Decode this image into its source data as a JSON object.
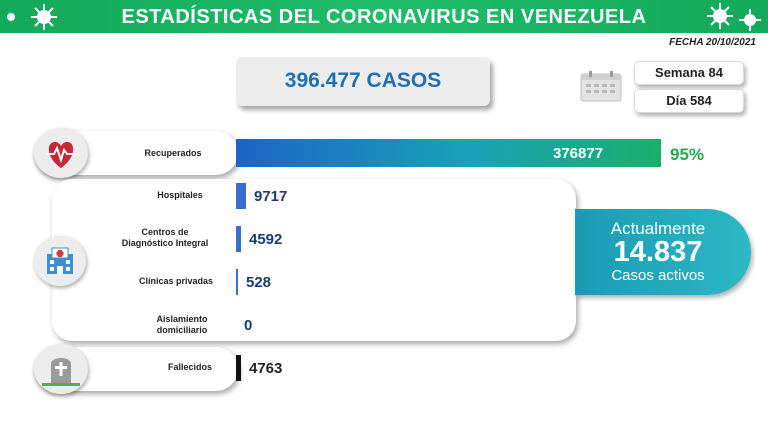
{
  "header": {
    "title": "ESTADÍSTICAS DEL CORONAVIRUS EN VENEZUELA"
  },
  "date_label": "FECHA 20/10/2021",
  "summary": {
    "cases": "396.477 CASOS",
    "week": "Semana 84",
    "day": "Día 584"
  },
  "active": {
    "line1": "Actualmente",
    "number": "14.837",
    "line2": "Casos activos"
  },
  "colors": {
    "banner": "#1fbd6a",
    "recovered": "#1a9bb5",
    "hospital_bar": "#3a6fd0",
    "deaths_bar": "#111111",
    "active_box": "#2cb8c4"
  },
  "chart_data": {
    "type": "bar",
    "orientation": "horizontal",
    "categories": [
      "Recuperados",
      "Hospitales",
      "Centros de Diagnóstico Integral",
      "Clínicas privadas",
      "Aislamiento domiciliario",
      "Fallecidos"
    ],
    "values": [
      376877,
      9717,
      4592,
      528,
      0,
      4763
    ],
    "value_labels": [
      "376877",
      "9717",
      "4592",
      "528",
      "0",
      "4763"
    ],
    "annotations": {
      "recovered_percent": "95%"
    }
  },
  "labels": {
    "recuperados": "Recuperados",
    "hospitales": "Hospitales",
    "cdi_1": "Centros de",
    "cdi_2": "Diagnóstico Integral",
    "clinicas": "Clínicas privadas",
    "aislamiento_1": "Aislamiento",
    "aislamiento_2": "domiciliario",
    "fallecidos": "Fallecidos"
  }
}
